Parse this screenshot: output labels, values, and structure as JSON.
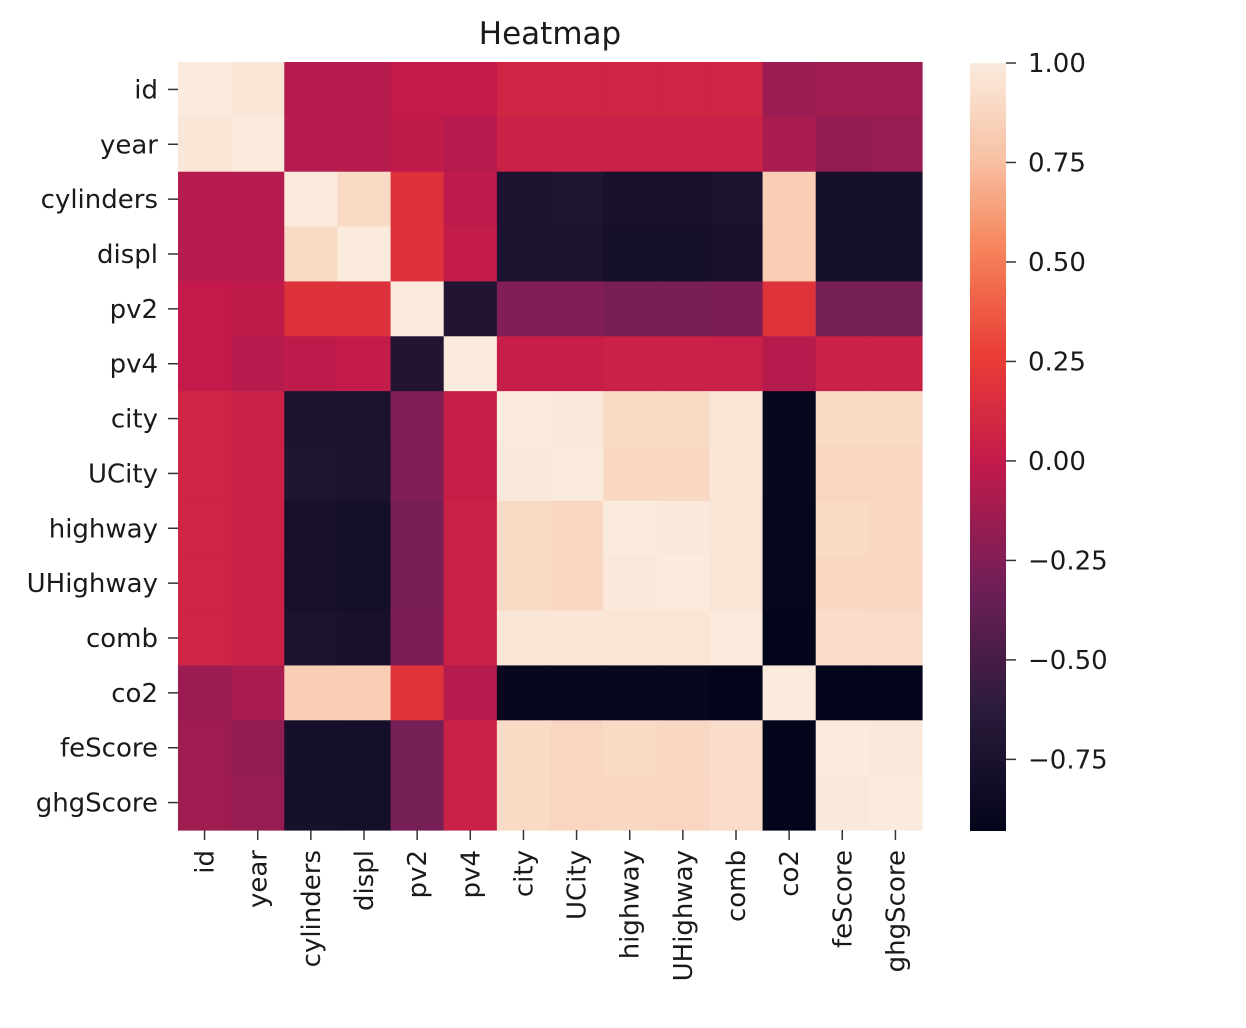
{
  "chart_data": {
    "type": "heatmap",
    "title": "Heatmap",
    "xlabel": "",
    "ylabel": "",
    "x_labels": [
      "id",
      "year",
      "cylinders",
      "displ",
      "pv2",
      "pv4",
      "city",
      "UCity",
      "highway",
      "UHighway",
      "comb",
      "co2",
      "feScore",
      "ghgScore"
    ],
    "y_labels": [
      "id",
      "year",
      "cylinders",
      "displ",
      "pv2",
      "pv4",
      "city",
      "UCity",
      "highway",
      "UHighway",
      "comb",
      "co2",
      "feScore",
      "ghgScore"
    ],
    "values": [
      [
        1.0,
        0.97,
        -0.05,
        -0.05,
        0.0,
        0.0,
        0.08,
        0.08,
        0.08,
        0.08,
        0.08,
        -0.15,
        -0.14,
        -0.14
      ],
      [
        0.97,
        1.0,
        -0.05,
        -0.05,
        -0.01,
        -0.05,
        0.05,
        0.05,
        0.05,
        0.05,
        0.05,
        -0.1,
        -0.19,
        -0.17
      ],
      [
        -0.05,
        -0.05,
        1.0,
        0.9,
        0.18,
        -0.02,
        -0.73,
        -0.71,
        -0.77,
        -0.77,
        -0.75,
        0.83,
        -0.78,
        -0.78
      ],
      [
        -0.05,
        -0.05,
        0.9,
        1.0,
        0.18,
        0.01,
        -0.75,
        -0.73,
        -0.79,
        -0.79,
        -0.77,
        0.83,
        -0.79,
        -0.79
      ],
      [
        0.0,
        -0.01,
        0.18,
        0.18,
        1.0,
        -0.7,
        -0.25,
        -0.25,
        -0.28,
        -0.28,
        -0.27,
        0.19,
        -0.29,
        -0.29
      ],
      [
        0.0,
        -0.05,
        -0.02,
        0.01,
        -0.7,
        1.0,
        0.03,
        0.03,
        0.05,
        0.05,
        0.04,
        -0.05,
        0.05,
        0.05
      ],
      [
        0.08,
        0.05,
        -0.73,
        -0.75,
        -0.25,
        0.03,
        1.0,
        0.99,
        0.9,
        0.9,
        0.97,
        -0.9,
        0.9,
        0.9
      ],
      [
        0.08,
        0.05,
        -0.71,
        -0.73,
        -0.25,
        0.03,
        0.99,
        1.0,
        0.89,
        0.89,
        0.97,
        -0.9,
        0.88,
        0.88
      ],
      [
        0.08,
        0.05,
        -0.77,
        -0.79,
        -0.28,
        0.05,
        0.9,
        0.89,
        1.0,
        0.99,
        0.96,
        -0.91,
        0.9,
        0.89
      ],
      [
        0.08,
        0.05,
        -0.77,
        -0.79,
        -0.28,
        0.05,
        0.9,
        0.89,
        0.99,
        1.0,
        0.96,
        -0.91,
        0.89,
        0.88
      ],
      [
        0.08,
        0.05,
        -0.75,
        -0.77,
        -0.27,
        0.04,
        0.97,
        0.97,
        0.96,
        0.96,
        1.0,
        -0.93,
        0.92,
        0.92
      ],
      [
        -0.15,
        -0.1,
        0.83,
        0.83,
        0.19,
        -0.05,
        -0.9,
        -0.9,
        -0.91,
        -0.91,
        -0.93,
        1.0,
        -0.93,
        -0.93
      ],
      [
        -0.14,
        -0.19,
        -0.78,
        -0.79,
        -0.29,
        0.05,
        0.9,
        0.88,
        0.9,
        0.89,
        0.92,
        -0.93,
        1.0,
        0.99
      ],
      [
        -0.14,
        -0.17,
        -0.78,
        -0.79,
        -0.29,
        0.05,
        0.9,
        0.88,
        0.89,
        0.88,
        0.92,
        -0.93,
        0.99,
        1.0
      ]
    ],
    "colormap": "rocket",
    "colorbar": {
      "range": [
        -0.93,
        1.0
      ],
      "ticks": [
        1.0,
        0.75,
        0.5,
        0.25,
        0.0,
        -0.25,
        -0.5,
        -0.75
      ],
      "tick_labels": [
        "1.00",
        "0.75",
        "0.50",
        "0.25",
        "0.00",
        "−0.25",
        "−0.50",
        "−0.75"
      ]
    }
  }
}
